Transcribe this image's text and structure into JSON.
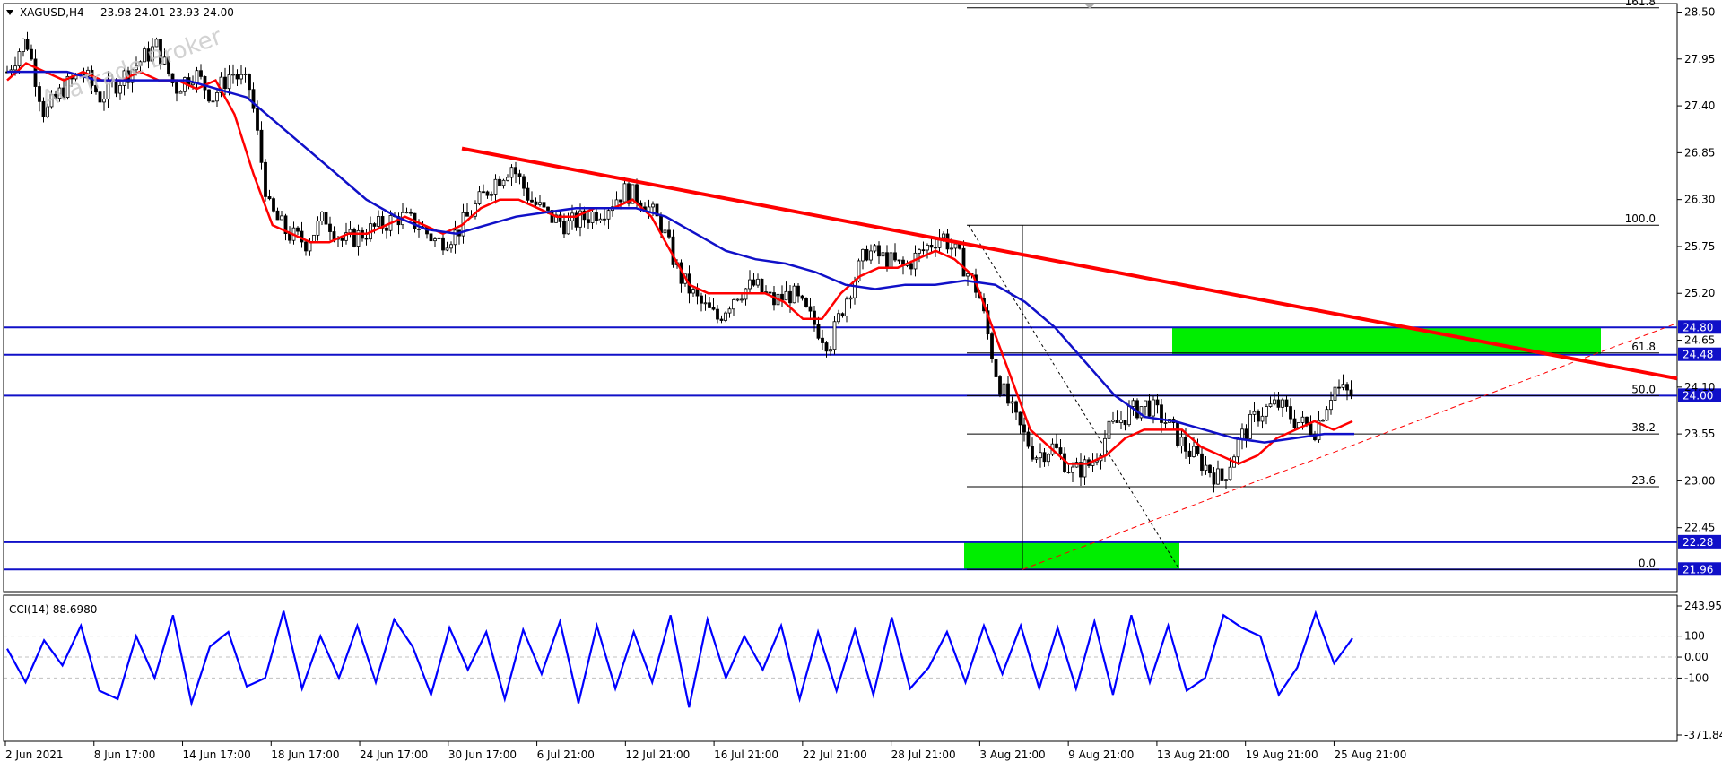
{
  "chart_data": [
    {
      "type": "candlestick",
      "symbol_label": "XAGUSD,H4",
      "ohlc": "23.98 24.01 23.93 24.00",
      "watermark": "AvaTrade Broker",
      "ylim": [
        21.7,
        28.6
      ],
      "y_ticks": [
        "28.50",
        "27.95",
        "27.40",
        "26.85",
        "26.30",
        "25.75",
        "25.20",
        "24.65",
        "24.10",
        "23.55",
        "23.00",
        "22.45"
      ],
      "x_tick_labels": [
        "2 Jun 2021",
        "8 Jun 17:00",
        "14 Jun 17:00",
        "18 Jun 17:00",
        "24 Jun 17:00",
        "30 Jun 17:00",
        "6 Jul 21:00",
        "12 Jul 21:00",
        "16 Jul 21:00",
        "22 Jul 21:00",
        "28 Jul 21:00",
        "3 Aug 21:00",
        "9 Aug 21:00",
        "13 Aug 21:00",
        "19 Aug 21:00",
        "25 Aug 21:00"
      ],
      "price_path": [
        27.8,
        28.2,
        27.3,
        27.6,
        27.8,
        27.5,
        27.7,
        27.9,
        28.1,
        27.6,
        27.8,
        27.5,
        27.8,
        27.6,
        26.2,
        25.9,
        25.8,
        26.1,
        25.8,
        25.9,
        26.0,
        26.1,
        26.0,
        25.8,
        25.9,
        26.2,
        26.5,
        26.7,
        26.3,
        26.1,
        26.0,
        26.1,
        26.2,
        26.4,
        26.3,
        26.0,
        25.4,
        25.1,
        24.9,
        25.2,
        25.3,
        25.1,
        25.2,
        24.9,
        24.6,
        25.2,
        25.7,
        25.6,
        25.5,
        25.7,
        25.9,
        25.6,
        25.2,
        24.2,
        23.7,
        23.3,
        23.4,
        23.1,
        23.2,
        23.6,
        23.8,
        23.9,
        23.7,
        23.4,
        23.2,
        23.0,
        23.5,
        23.8,
        23.9,
        23.7,
        23.6,
        24.1,
        24.0
      ],
      "moving_averages": [
        {
          "color": "#ff0000",
          "path": [
            27.7,
            27.9,
            27.8,
            27.7,
            27.8,
            27.7,
            27.7,
            27.8,
            27.7,
            27.7,
            27.6,
            27.7,
            27.3,
            26.6,
            26.0,
            25.9,
            25.8,
            25.8,
            25.9,
            25.9,
            26.0,
            26.1,
            26.0,
            25.9,
            26.0,
            26.2,
            26.3,
            26.3,
            26.2,
            26.1,
            26.1,
            26.2,
            26.2,
            26.3,
            26.1,
            25.7,
            25.3,
            25.2,
            25.2,
            25.2,
            25.2,
            25.1,
            24.9,
            24.9,
            25.2,
            25.4,
            25.5,
            25.5,
            25.6,
            25.7,
            25.6,
            25.4,
            24.8,
            24.2,
            23.6,
            23.4,
            23.2,
            23.2,
            23.3,
            23.5,
            23.6,
            23.6,
            23.6,
            23.4,
            23.3,
            23.2,
            23.3,
            23.5,
            23.6,
            23.7,
            23.6,
            23.7
          ]
        },
        {
          "color": "#1010c8",
          "path": [
            27.8,
            27.8,
            27.8,
            27.7,
            27.7,
            27.7,
            27.7,
            27.6,
            27.5,
            27.2,
            26.9,
            26.6,
            26.3,
            26.1,
            25.95,
            25.9,
            26.0,
            26.1,
            26.15,
            26.2,
            26.2,
            26.2,
            26.1,
            25.9,
            25.7,
            25.6,
            25.55,
            25.45,
            25.3,
            25.25,
            25.3,
            25.3,
            25.35,
            25.3,
            25.1,
            24.8,
            24.4,
            24.0,
            23.75,
            23.7,
            23.6,
            23.5,
            23.45,
            23.5,
            23.55,
            23.55
          ]
        }
      ],
      "horizontal_levels": [
        {
          "value": 24.8,
          "label": "24.80"
        },
        {
          "value": 24.48,
          "label": "24.48"
        },
        {
          "value": 24.0,
          "label": "24.00"
        },
        {
          "value": 22.28,
          "label": "22.28"
        },
        {
          "value": 21.96,
          "label": "21.96"
        }
      ],
      "fibonacci_levels": [
        {
          "ratio": "161.8",
          "value": 28.55
        },
        {
          "ratio": "100.0",
          "value": 26.0
        },
        {
          "ratio": "61.8",
          "value": 24.5
        },
        {
          "ratio": "50.0",
          "value": 24.0
        },
        {
          "ratio": "38.2",
          "value": 23.55
        },
        {
          "ratio": "23.6",
          "value": 22.93
        },
        {
          "ratio": "0.0",
          "value": 21.96
        }
      ],
      "zones": [
        {
          "name": "resistance-zone",
          "color": "#00ee00",
          "y": [
            24.48,
            24.8
          ]
        },
        {
          "name": "support-zone",
          "color": "#00ee00",
          "y": [
            21.96,
            22.28
          ]
        }
      ],
      "trendlines": [
        {
          "name": "downtrend",
          "color": "#ff0000",
          "y_from": 26.9,
          "y_to": 24.2
        },
        {
          "name": "uptrend",
          "color": "#ff0000",
          "dashed": true,
          "y_from": 21.96,
          "y_to": 24.85
        }
      ]
    },
    {
      "type": "line",
      "indicator_label": "CCI(14) 88.6980",
      "ylim": [
        -371.842,
        243.95
      ],
      "y_ticks": [
        "243.950",
        "100",
        "0.00",
        "-100",
        "-371.842"
      ],
      "series": [
        {
          "color": "#0000ff",
          "values": [
            40,
            -120,
            80,
            -40,
            150,
            -160,
            -200,
            100,
            -100,
            200,
            -220,
            50,
            120,
            -140,
            -100,
            220,
            -150,
            100,
            -100,
            150,
            -120,
            180,
            50,
            -180,
            140,
            -60,
            120,
            -200,
            130,
            -80,
            170,
            -220,
            150,
            -150,
            120,
            -120,
            200,
            -240,
            180,
            -100,
            100,
            -60,
            150,
            -200,
            120,
            -160,
            130,
            -180,
            190,
            -150,
            -50,
            120,
            -120,
            150,
            -80,
            150,
            -150,
            140,
            -150,
            170,
            -180,
            200,
            -120,
            150,
            -160,
            -100,
            200,
            140,
            100,
            -180,
            -50,
            210,
            -30,
            90
          ]
        }
      ]
    }
  ]
}
